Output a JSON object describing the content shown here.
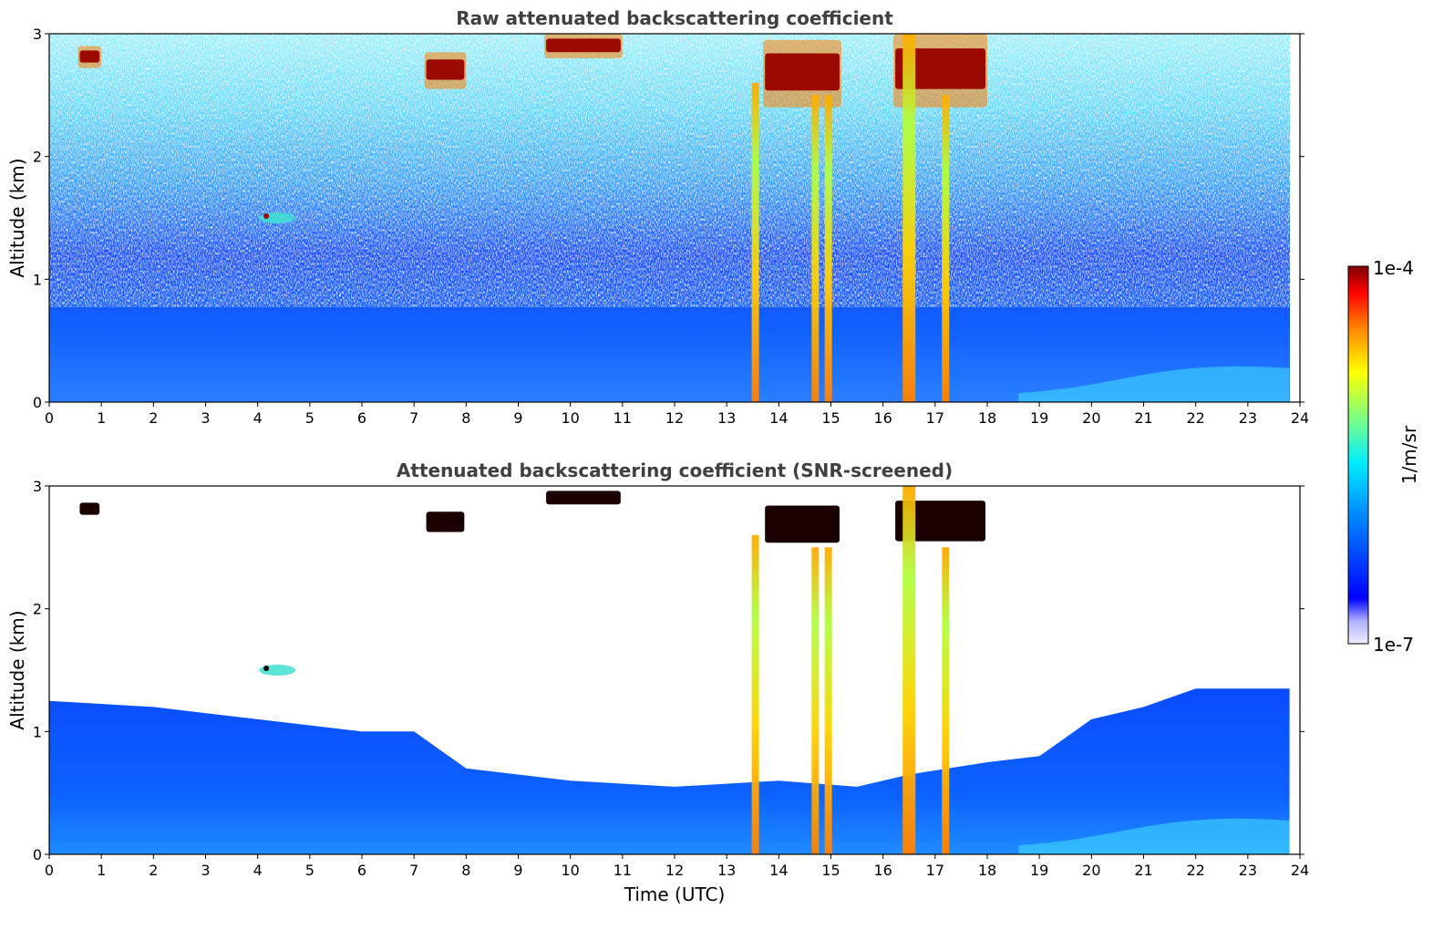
{
  "chart_data": [
    {
      "type": "heatmap",
      "title": "Raw attenuated backscattering coefficient",
      "xlabel": "",
      "ylabel": "Altitude (km)",
      "xlim": [
        0,
        24
      ],
      "ylim": [
        0,
        3
      ],
      "x_ticks": [
        "0",
        "1",
        "2",
        "3",
        "4",
        "5",
        "6",
        "7",
        "8",
        "9",
        "10",
        "11",
        "12",
        "13",
        "14",
        "15",
        "16",
        "17",
        "18",
        "19",
        "20",
        "21",
        "22",
        "23",
        "24"
      ],
      "y_ticks": [
        "0",
        "1",
        "2",
        "3"
      ],
      "colorscale": "jet (log)",
      "data_end_time": 23.8,
      "features": [
        {
          "kind": "cloud_layer",
          "t_start": 0.55,
          "t_end": 1.0,
          "alt_bottom": 2.72,
          "alt_top": 2.9,
          "intensity": "1e-4"
        },
        {
          "kind": "cloud_layer",
          "t_start": 7.2,
          "t_end": 8.0,
          "alt_bottom": 2.55,
          "alt_top": 2.85,
          "intensity": "high"
        },
        {
          "kind": "cloud_layer",
          "t_start": 9.5,
          "t_end": 11.0,
          "alt_bottom": 2.8,
          "alt_top": 3.0,
          "intensity": "1e-4"
        },
        {
          "kind": "cloud_layer",
          "t_start": 13.7,
          "t_end": 15.2,
          "alt_bottom": 2.4,
          "alt_top": 2.95,
          "intensity": "high"
        },
        {
          "kind": "cloud_layer",
          "t_start": 16.2,
          "t_end": 18.0,
          "alt_bottom": 2.4,
          "alt_top": 3.0,
          "intensity": "high"
        },
        {
          "kind": "precip_column",
          "time": 13.55,
          "alt_bottom": 0.0,
          "alt_top": 2.6
        },
        {
          "kind": "precip_column",
          "time": 14.7,
          "alt_bottom": 0.0,
          "alt_top": 2.5
        },
        {
          "kind": "precip_column",
          "time": 14.95,
          "alt_bottom": 0.0,
          "alt_top": 2.5
        },
        {
          "kind": "precip_column",
          "time": 16.5,
          "alt_bottom": 0.0,
          "alt_top": 3.0
        },
        {
          "kind": "precip_column",
          "time": 17.2,
          "alt_bottom": 0.0,
          "alt_top": 2.5
        },
        {
          "kind": "aerosol_patch",
          "time": 4.2,
          "alt": 1.5
        }
      ]
    },
    {
      "type": "heatmap",
      "title": "Attenuated backscattering coefficient (SNR-screened)",
      "xlabel": "Time (UTC)",
      "ylabel": "Altitude (km)",
      "xlim": [
        0,
        24
      ],
      "ylim": [
        0,
        3
      ],
      "x_ticks": [
        "0",
        "1",
        "2",
        "3",
        "4",
        "5",
        "6",
        "7",
        "8",
        "9",
        "10",
        "11",
        "12",
        "13",
        "14",
        "15",
        "16",
        "17",
        "18",
        "19",
        "20",
        "21",
        "22",
        "23",
        "24"
      ],
      "y_ticks": [
        "0",
        "1",
        "2",
        "3"
      ],
      "colorscale": "jet (log)",
      "data_end_time": 23.8,
      "boundary_layer_top_km": [
        [
          0,
          1.25
        ],
        [
          2,
          1.2
        ],
        [
          4,
          1.1
        ],
        [
          6,
          1.0
        ],
        [
          7,
          1.0
        ],
        [
          8,
          0.7
        ],
        [
          10,
          0.6
        ],
        [
          12,
          0.55
        ],
        [
          14,
          0.6
        ],
        [
          15.5,
          0.55
        ],
        [
          16.5,
          0.65
        ],
        [
          18,
          0.75
        ],
        [
          19,
          0.8
        ],
        [
          20,
          1.1
        ],
        [
          21,
          1.2
        ],
        [
          22,
          1.35
        ],
        [
          23.8,
          1.35
        ]
      ]
    }
  ],
  "colorbar": {
    "label": "1/m/sr",
    "max_label": "1e-4",
    "min_label": "1e-7",
    "scale": "log"
  },
  "colors": {
    "jet": [
      "#00007f",
      "#0000ff",
      "#0080ff",
      "#00ffff",
      "#80ff80",
      "#ffff00",
      "#ff8000",
      "#ff0000",
      "#7f0000"
    ],
    "text": "#000000",
    "title_text": "#404040"
  }
}
